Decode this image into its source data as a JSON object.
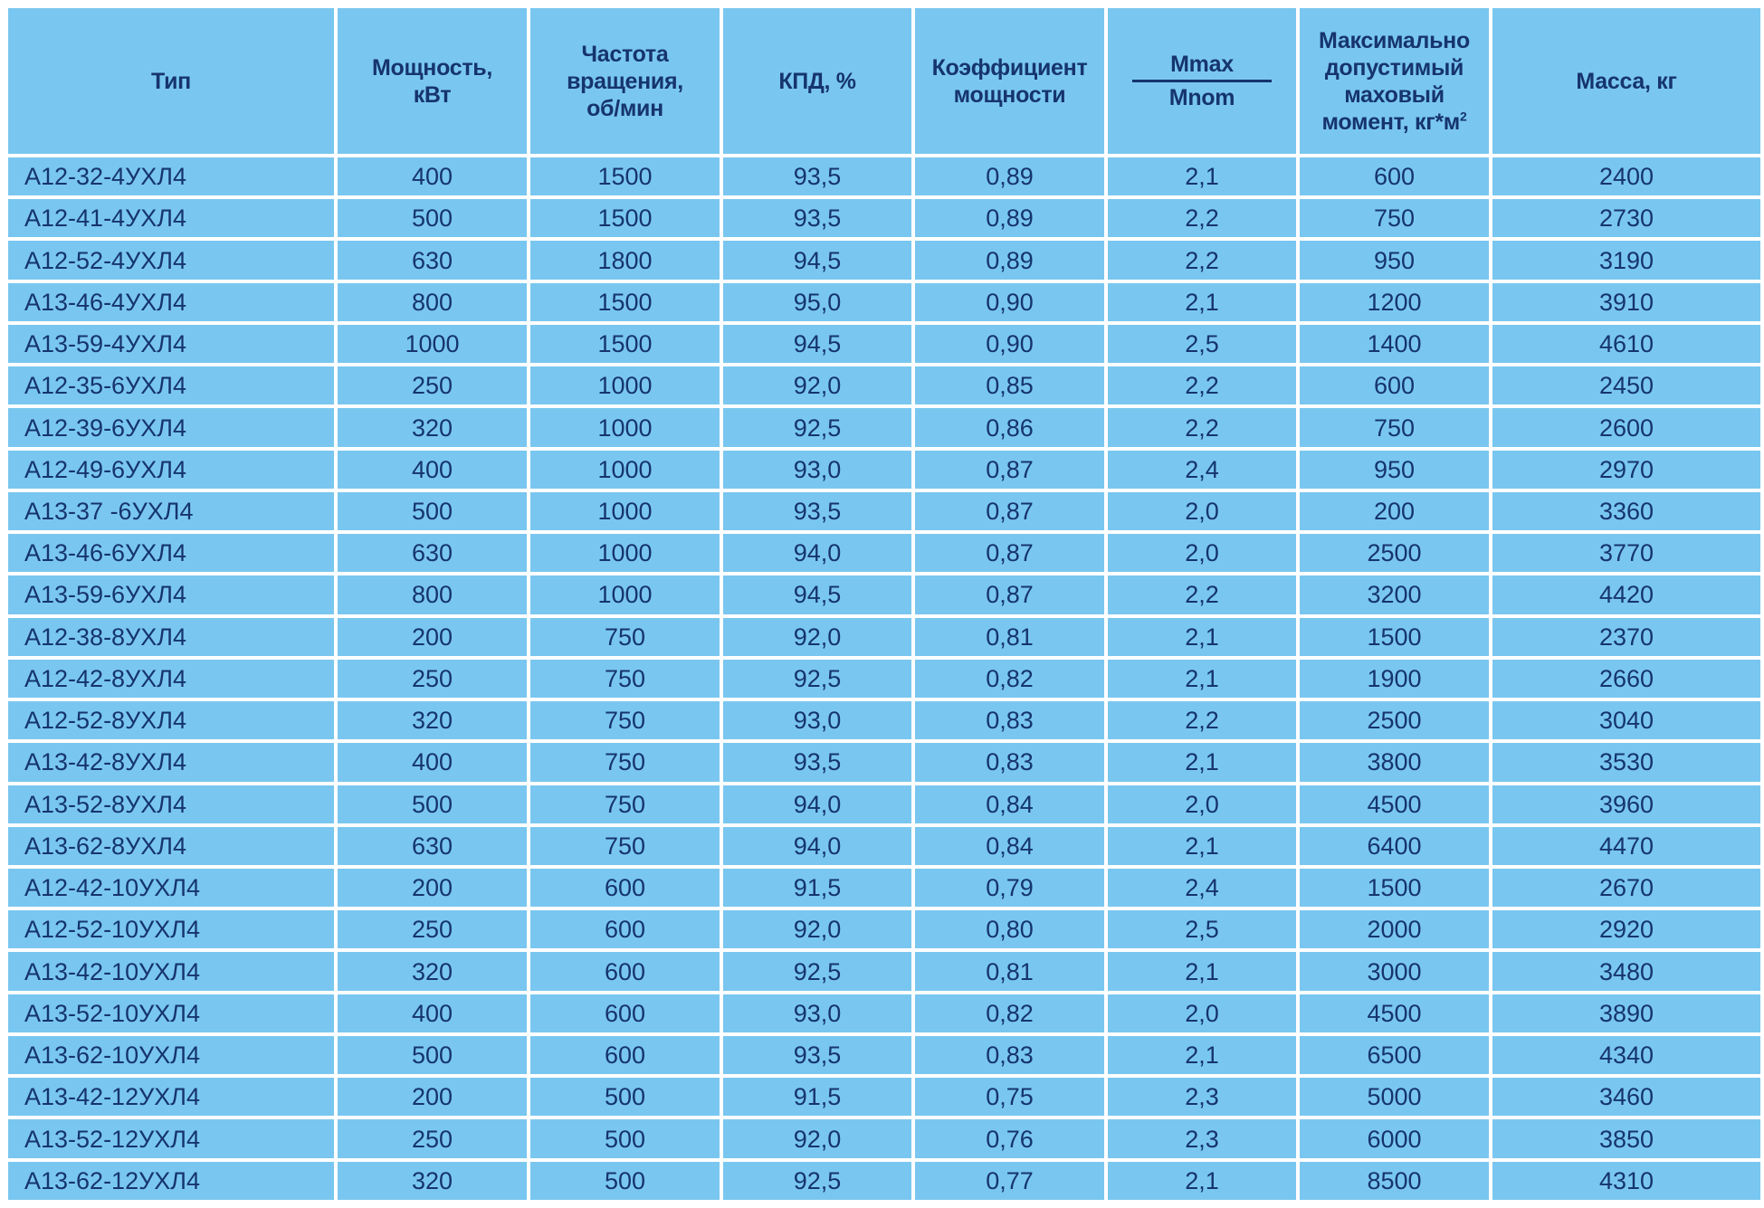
{
  "headers": {
    "type": "Тип",
    "power": [
      "Мощность,",
      "кВт"
    ],
    "speed": [
      "Частота",
      "вращения,",
      "об/мин"
    ],
    "efficiency": "КПД, %",
    "power_factor": [
      "Коэффициент",
      "мощности"
    ],
    "torque_ratio": {
      "numerator": "Mmax",
      "denominator": "Mnom"
    },
    "flywheel": [
      "Максимально",
      "допустимый",
      "маховый",
      "момент, кг*м"
    ],
    "flywheel_sup": "2",
    "mass": "Масса, кг"
  },
  "rows": [
    [
      "А12-32-4УХЛ4",
      "400",
      "1500",
      "93,5",
      "0,89",
      "2,1",
      "600",
      "2400"
    ],
    [
      "А12-41-4УХЛ4",
      "500",
      "1500",
      "93,5",
      "0,89",
      "2,2",
      "750",
      "2730"
    ],
    [
      "А12-52-4УХЛ4",
      "630",
      "1800",
      "94,5",
      "0,89",
      "2,2",
      "950",
      "3190"
    ],
    [
      "А13-46-4УХЛ4",
      "800",
      "1500",
      "95,0",
      "0,90",
      "2,1",
      "1200",
      "3910"
    ],
    [
      "А13-59-4УХЛ4",
      "1000",
      "1500",
      "94,5",
      "0,90",
      "2,5",
      "1400",
      "4610"
    ],
    [
      "А12-35-6УХЛ4",
      "250",
      "1000",
      "92,0",
      "0,85",
      "2,2",
      "600",
      "2450"
    ],
    [
      "А12-39-6УХЛ4",
      "320",
      "1000",
      "92,5",
      "0,86",
      "2,2",
      "750",
      "2600"
    ],
    [
      "А12-49-6УХЛ4",
      "400",
      "1000",
      "93,0",
      "0,87",
      "2,4",
      "950",
      "2970"
    ],
    [
      "А13-37 -6УХЛ4",
      "500",
      "1000",
      "93,5",
      "0,87",
      "2,0",
      "200",
      "3360"
    ],
    [
      "А13-46-6УХЛ4",
      "630",
      "1000",
      "94,0",
      "0,87",
      "2,0",
      "2500",
      "3770"
    ],
    [
      "А13-59-6УХЛ4",
      "800",
      "1000",
      "94,5",
      "0,87",
      "2,2",
      "3200",
      "4420"
    ],
    [
      "А12-38-8УХЛ4",
      "200",
      "750",
      "92,0",
      "0,81",
      "2,1",
      "1500",
      "2370"
    ],
    [
      "А12-42-8УХЛ4",
      "250",
      "750",
      "92,5",
      "0,82",
      "2,1",
      "1900",
      "2660"
    ],
    [
      "А12-52-8УХЛ4",
      "320",
      "750",
      "93,0",
      "0,83",
      "2,2",
      "2500",
      "3040"
    ],
    [
      "А13-42-8УХЛ4",
      "400",
      "750",
      "93,5",
      "0,83",
      "2,1",
      "3800",
      "3530"
    ],
    [
      "А13-52-8УХЛ4",
      "500",
      "750",
      "94,0",
      "0,84",
      "2,0",
      "4500",
      "3960"
    ],
    [
      "А13-62-8УХЛ4",
      "630",
      "750",
      "94,0",
      "0,84",
      "2,1",
      "6400",
      "4470"
    ],
    [
      "А12-42-10УХЛ4",
      "200",
      "600",
      "91,5",
      "0,79",
      "2,4",
      "1500",
      "2670"
    ],
    [
      "А12-52-10УХЛ4",
      "250",
      "600",
      "92,0",
      "0,80",
      "2,5",
      "2000",
      "2920"
    ],
    [
      "А13-42-10УХЛ4",
      "320",
      "600",
      "92,5",
      "0,81",
      "2,1",
      "3000",
      "3480"
    ],
    [
      "А13-52-10УХЛ4",
      "400",
      "600",
      "93,0",
      "0,82",
      "2,0",
      "4500",
      "3890"
    ],
    [
      "А13-62-10УХЛ4",
      "500",
      "600",
      "93,5",
      "0,83",
      "2,1",
      "6500",
      "4340"
    ],
    [
      "А13-42-12УХЛ4",
      "200",
      "500",
      "91,5",
      "0,75",
      "2,3",
      "5000",
      "3460"
    ],
    [
      "А13-52-12УХЛ4",
      "250",
      "500",
      "92,0",
      "0,76",
      "2,3",
      "6000",
      "3850"
    ],
    [
      "А13-62-12УХЛ4",
      "320",
      "500",
      "92,5",
      "0,77",
      "2,1",
      "8500",
      "4310"
    ]
  ],
  "colors": {
    "cell_background": "#79c7f0",
    "text": "#16346f",
    "grid_lines": "#ffffff"
  }
}
